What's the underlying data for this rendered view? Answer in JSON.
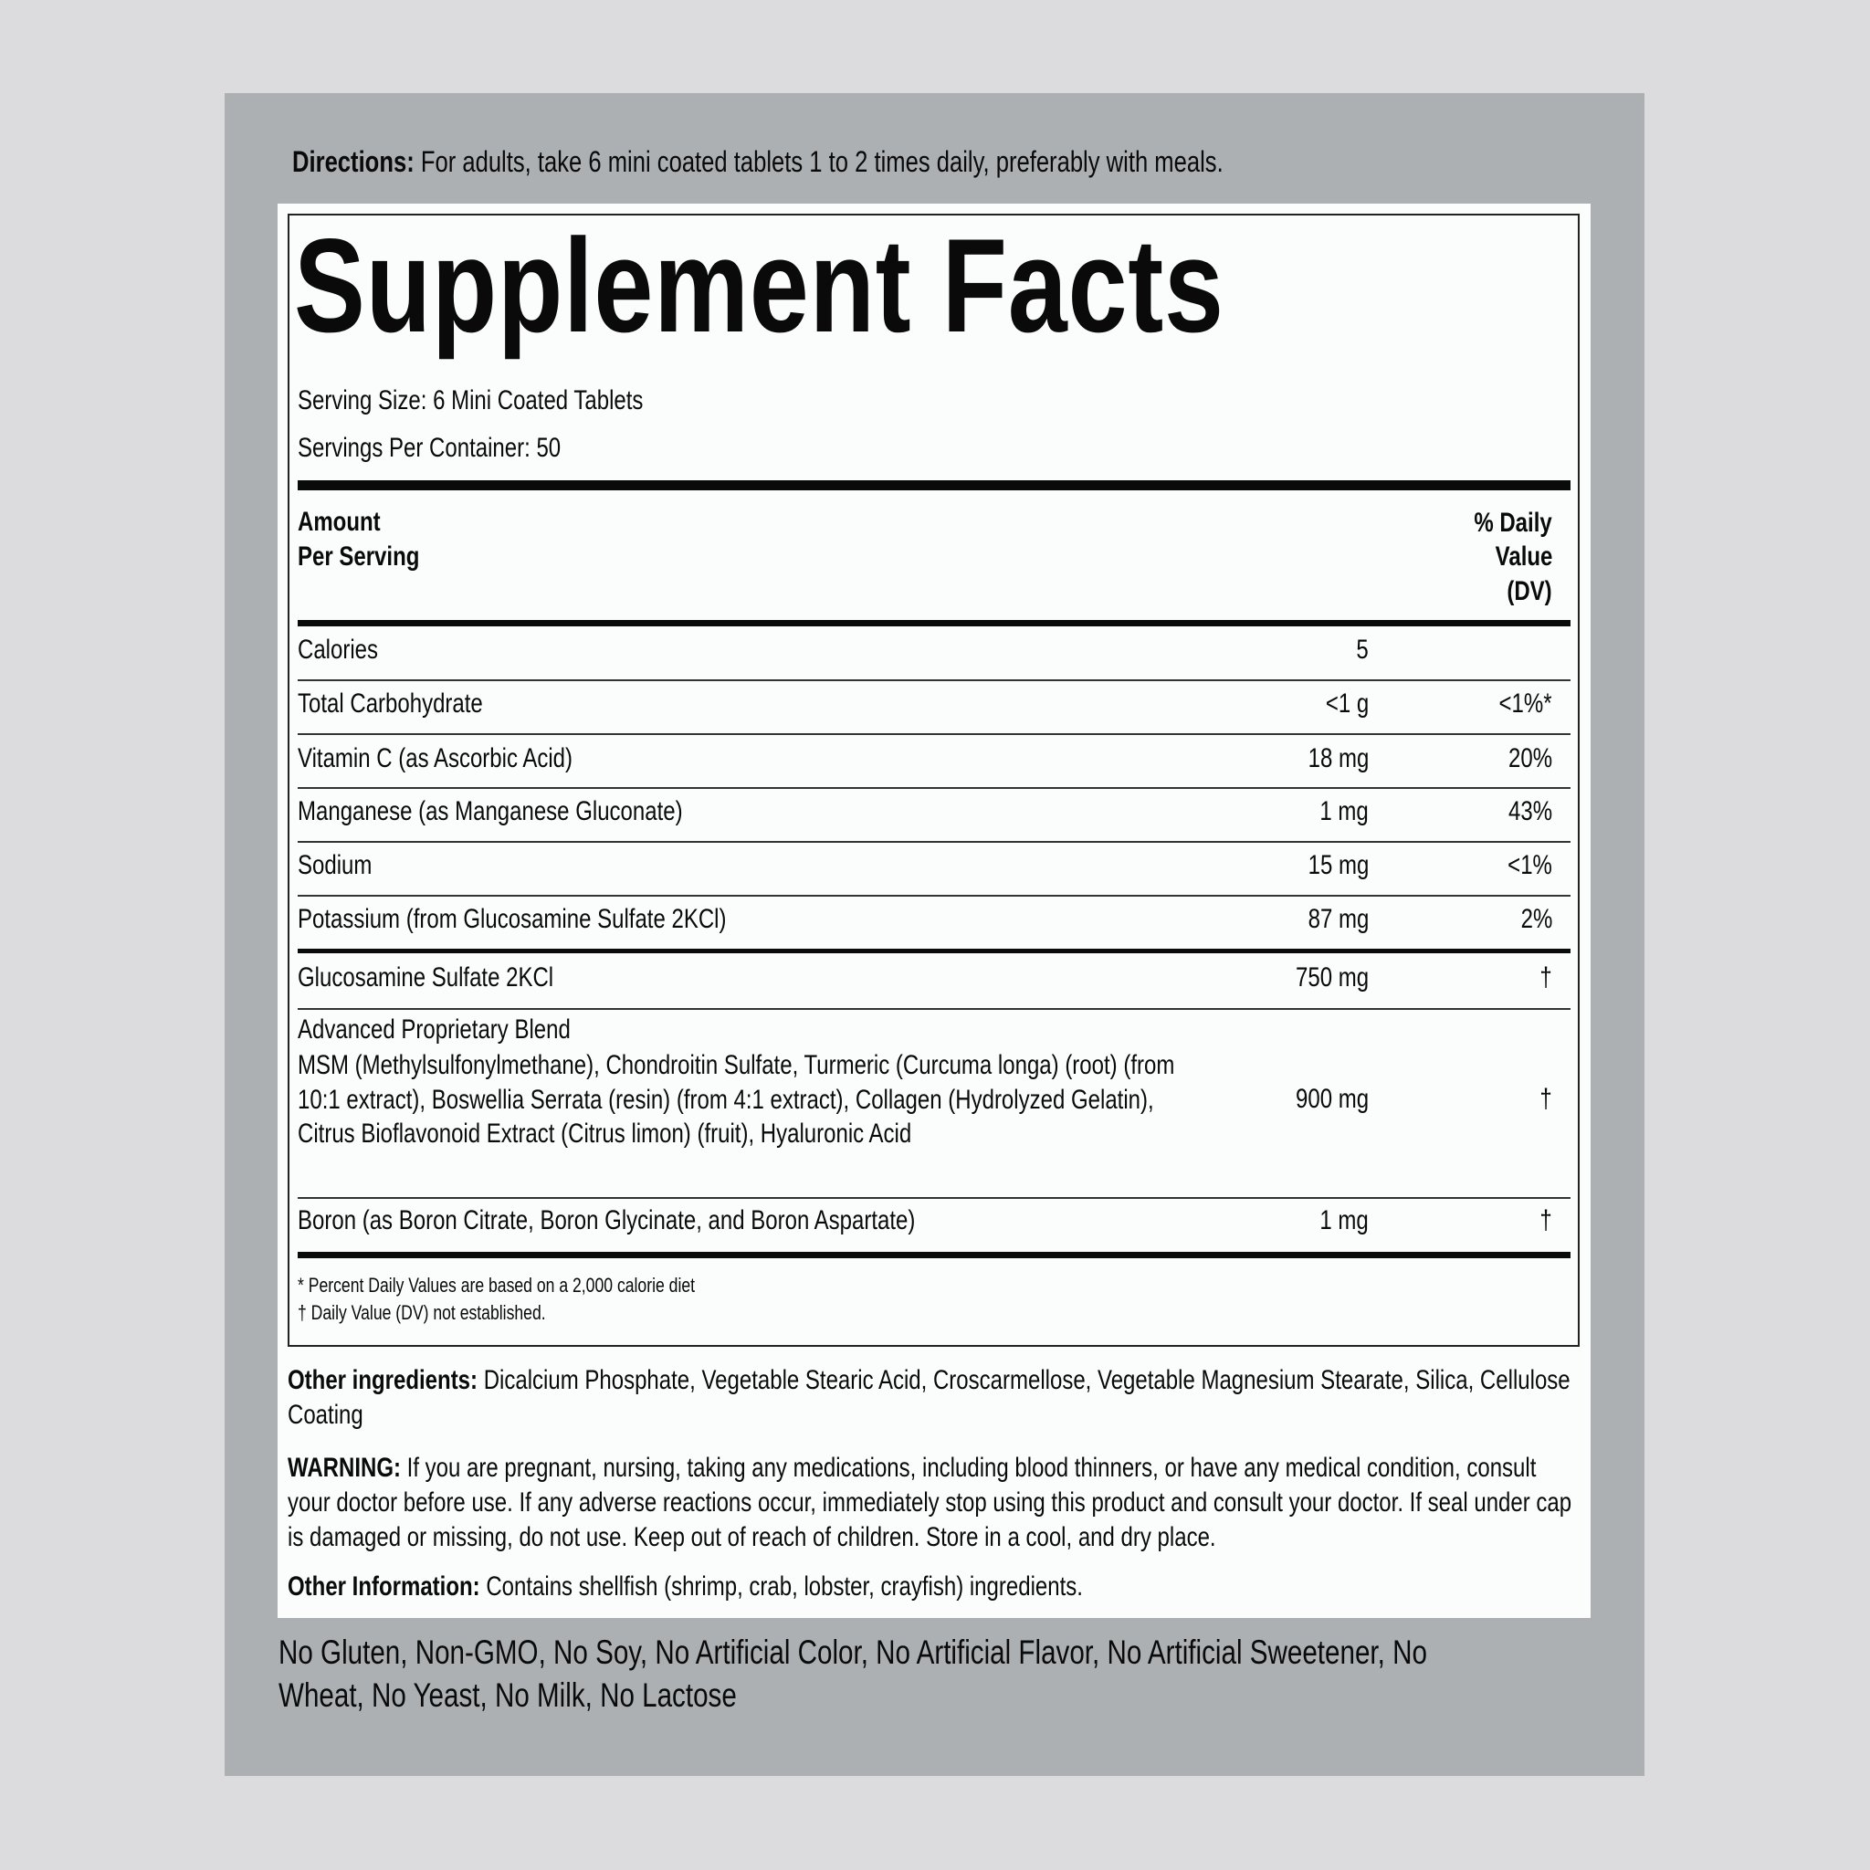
{
  "directions": {
    "label": "Directions:",
    "text": " For adults, take 6 mini coated tablets 1 to 2 times daily, preferably with meals."
  },
  "title": "Supplement Facts",
  "serving_size": "Serving Size: 6 Mini Coated Tablets",
  "servings_per_container": "Servings Per Container: 50",
  "header": {
    "amount_line1": "Amount",
    "amount_line2": "Per Serving",
    "dv_line1": "% Daily",
    "dv_line2": "Value",
    "dv_line3": "(DV)"
  },
  "rows": [
    {
      "name": "Calories",
      "amount": "5",
      "dv": ""
    },
    {
      "name": "Total Carbohydrate",
      "amount": "<1 g",
      "dv": "<1%*"
    },
    {
      "name": "Vitamin C (as Ascorbic Acid)",
      "amount": "18 mg",
      "dv": "20%"
    },
    {
      "name": "Manganese (as Manganese Gluconate)",
      "amount": "1 mg",
      "dv": "43%"
    },
    {
      "name": "Sodium",
      "amount": "15 mg",
      "dv": "<1%"
    },
    {
      "name": "Potassium (from Glucosamine Sulfate 2KCl)",
      "amount": "87 mg",
      "dv": "2%"
    },
    {
      "name": "Glucosamine Sulfate 2KCl",
      "amount": "750 mg",
      "dv": "†"
    },
    {
      "name": "Advanced Proprietary Blend",
      "detail": "MSM (Methylsulfonylmethane), Chondroitin Sulfate, Turmeric (Curcuma longa) (root) (from 10:1 extract), Boswellia Serrata (resin) (from 4:1 extract), Collagen (Hydrolyzed Gelatin), Citrus Bioflavonoid Extract (Citrus limon) (fruit), Hyaluronic Acid",
      "amount": "900 mg",
      "dv": "†"
    },
    {
      "name": "Boron (as Boron Citrate, Boron Glycinate, and Boron Aspartate)",
      "amount": "1 mg",
      "dv": "†"
    }
  ],
  "footnotes": [
    "* Percent Daily Values are based on a 2,000 calorie diet",
    "† Daily Value (DV) not established."
  ],
  "other_ingredients": {
    "label": "Other ingredients:",
    "text": " Dicalcium Phosphate, Vegetable Stearic Acid, Croscarmellose, Vegetable Magnesium Stearate, Silica, Cellulose Coating"
  },
  "warning": {
    "label": "WARNING:",
    "text": " If you are pregnant, nursing, taking any medications, including blood thinners, or have any medical condition, consult your doctor before use. If any adverse reactions occur, immediately stop using this product and consult your doctor. If seal under cap is damaged or missing, do not use. Keep out of reach of children. Store in a cool, and dry place."
  },
  "other_information": {
    "label": "Other Information:",
    "text": " Contains shellfish (shrimp, crab, lobster, crayfish) ingredients."
  },
  "free_from": "No Gluten, Non-GMO, No Soy, No Artificial Color, No Artificial Flavor, No Artificial Sweetener, No Wheat, No Yeast, No Milk, No Lactose",
  "colors": {
    "page_background": "#dcdbde",
    "panel": "#acb0b3",
    "label": "#fbfdfc",
    "text": "#0a0a0a"
  }
}
